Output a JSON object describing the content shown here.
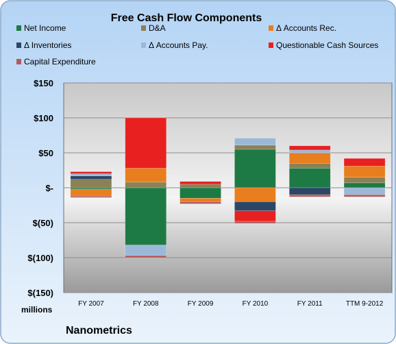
{
  "chart_data": {
    "type": "bar",
    "stacked": true,
    "title": "Free Cash Flow Components",
    "unit_label": "millions",
    "company": "Nanometrics",
    "categories": [
      "FY 2007",
      "FY 2008",
      "FY 2009",
      "FY 2010",
      "FY 2011",
      "TTM 9-2012"
    ],
    "ylim": [
      -150,
      100
    ],
    "ylim_plot": [
      -150,
      150
    ],
    "y_ticks": [
      {
        "value": 150,
        "label": "$150"
      },
      {
        "value": 100,
        "label": "$100"
      },
      {
        "value": 50,
        "label": "$50"
      },
      {
        "value": 0,
        "label": "$-"
      },
      {
        "value": -50,
        "label": "$(50)"
      },
      {
        "value": -100,
        "label": "$(100)"
      },
      {
        "value": -150,
        "label": "$(150)"
      }
    ],
    "grid": true,
    "legend_position": "top",
    "series": [
      {
        "name": "Net Income",
        "color": "#1e7a45",
        "values": [
          -2,
          -82,
          -15,
          55,
          28,
          7
        ]
      },
      {
        "name": "D&A",
        "color": "#8b8155",
        "values": [
          12,
          8,
          5,
          6,
          7,
          8
        ]
      },
      {
        "name": "Δ Accounts Rec.",
        "color": "#e87e1e",
        "values": [
          -10,
          20,
          -5,
          -20,
          15,
          16
        ]
      },
      {
        "name": "Δ Inventories",
        "color": "#2c4766",
        "values": [
          5,
          0,
          0,
          -13,
          -10,
          0
        ]
      },
      {
        "name": "Δ Accounts Pay.",
        "color": "#9bb8d8",
        "values": [
          3,
          -15,
          0,
          10,
          4,
          -10
        ]
      },
      {
        "name": "Questionable Cash Sources",
        "color": "#e82020",
        "values": [
          3,
          72,
          4,
          -15,
          6,
          11
        ]
      },
      {
        "name": "Capital Expenditure",
        "color": "#b55a5a",
        "values": [
          -2,
          -3,
          -3,
          -3,
          -3,
          -3
        ]
      }
    ]
  }
}
